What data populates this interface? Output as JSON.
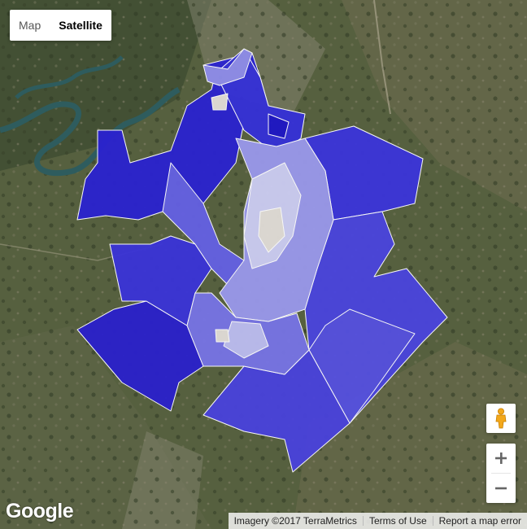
{
  "map_type_control": {
    "options": [
      "Map",
      "Satellite"
    ],
    "selected": "Satellite"
  },
  "controls": {
    "street_view_icon": "pegman-icon",
    "zoom_in_label": "+",
    "zoom_out_label": "−"
  },
  "branding": {
    "logo_text": "Google"
  },
  "attribution": {
    "imagery": "Imagery ©2017 TerraMetrics",
    "terms": "Terms of Use",
    "report": "Report a map error"
  },
  "overlay": {
    "description_colors": {
      "darkest": "#1c13c8",
      "dark": "#3a33d6",
      "mid": "#5e5ae2",
      "light": "#9c9cee",
      "lightest": "#cfd0f6",
      "pale": "#e2ddd8",
      "border": "#ffffff"
    }
  },
  "colors": {
    "satellite_base": "#4f5a3a",
    "river": "#2e5c5e",
    "pegman": "#f3a81b"
  }
}
